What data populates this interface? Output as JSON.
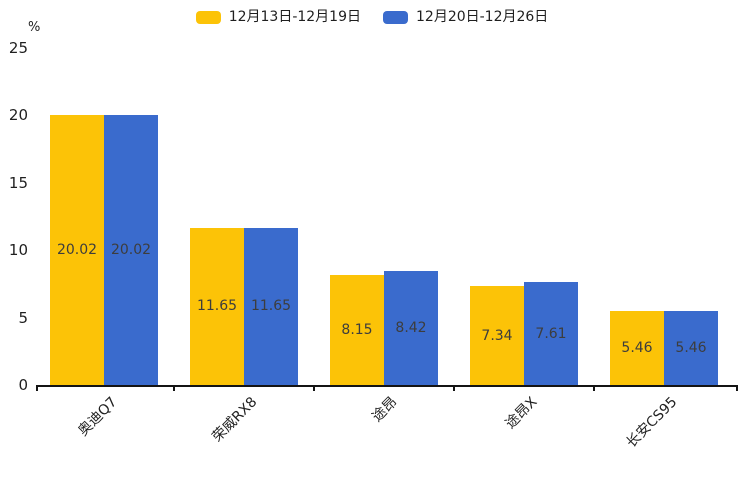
{
  "legend": {
    "items": [
      {
        "label": "12月13日-12月19日",
        "color": "#FCC307"
      },
      {
        "label": "12月20日-12月26日",
        "color": "#3A6BCD"
      }
    ]
  },
  "axis": {
    "unit": "%"
  },
  "chart_data": {
    "type": "bar",
    "title": "",
    "categories": [
      "奥迪Q7",
      "荣威RX8",
      "途昂",
      "途昂X",
      "长安CS95"
    ],
    "series": [
      {
        "name": "12月13日-12月19日",
        "color": "#FCC307",
        "values": [
          20.02,
          11.65,
          8.15,
          7.34,
          5.46
        ]
      },
      {
        "name": "12月20日-12月26日",
        "color": "#3A6BCD",
        "values": [
          20.02,
          11.65,
          8.42,
          7.61,
          5.46
        ]
      }
    ],
    "xlabel": "",
    "ylabel": "%",
    "ylim": [
      0,
      25
    ],
    "yticks": [
      0,
      5,
      10,
      15,
      20,
      25
    ],
    "grid": false,
    "legend_position": "top",
    "data_labels": true
  }
}
